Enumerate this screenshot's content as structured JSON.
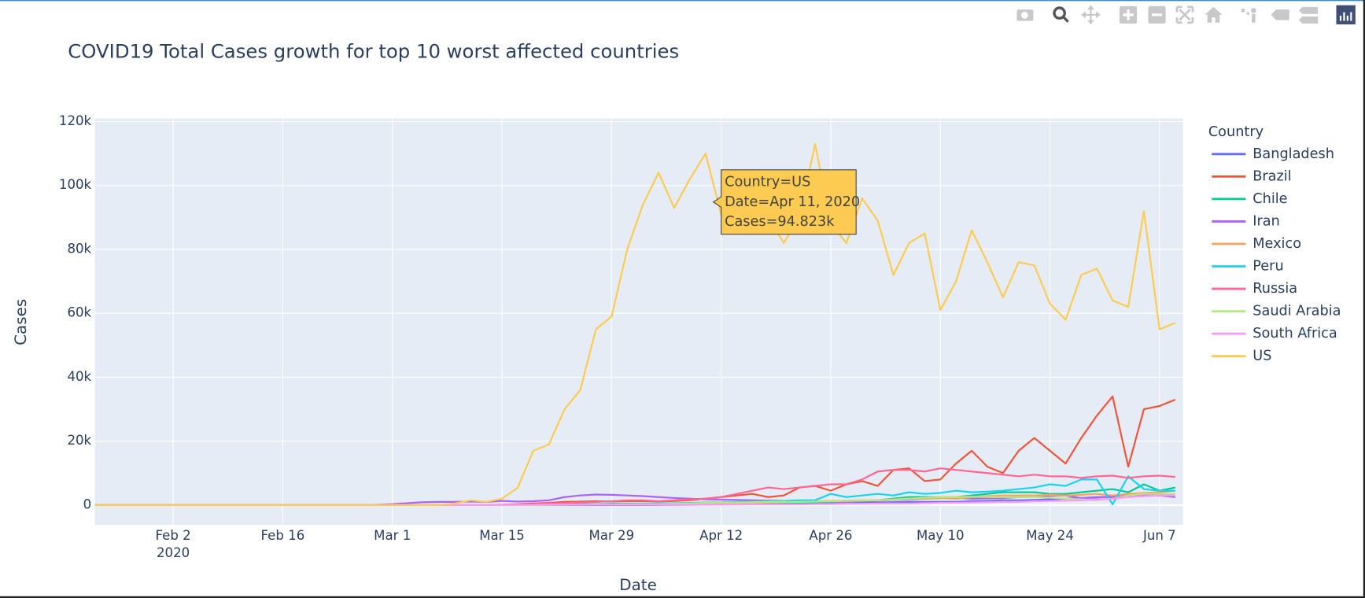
{
  "chart_data": {
    "type": "line",
    "title": "COVID19 Total Cases growth for top 10 worst affected countries",
    "x_label": "Date",
    "y_label": "Cases",
    "legend_title": "Country",
    "legend_position": "right",
    "grid": true,
    "x": [
      "2020-01-23",
      "2020-01-25",
      "2020-01-27",
      "2020-01-29",
      "2020-01-31",
      "2020-02-02",
      "2020-02-04",
      "2020-02-06",
      "2020-02-08",
      "2020-02-10",
      "2020-02-12",
      "2020-02-14",
      "2020-02-16",
      "2020-02-18",
      "2020-02-20",
      "2020-02-22",
      "2020-02-24",
      "2020-02-26",
      "2020-02-28",
      "2020-03-01",
      "2020-03-03",
      "2020-03-05",
      "2020-03-07",
      "2020-03-09",
      "2020-03-11",
      "2020-03-13",
      "2020-03-15",
      "2020-03-17",
      "2020-03-19",
      "2020-03-21",
      "2020-03-23",
      "2020-03-25",
      "2020-03-27",
      "2020-03-29",
      "2020-03-31",
      "2020-04-02",
      "2020-04-04",
      "2020-04-06",
      "2020-04-08",
      "2020-04-10",
      "2020-04-12",
      "2020-04-14",
      "2020-04-16",
      "2020-04-18",
      "2020-04-20",
      "2020-04-22",
      "2020-04-24",
      "2020-04-26",
      "2020-04-28",
      "2020-04-30",
      "2020-05-02",
      "2020-05-04",
      "2020-05-06",
      "2020-05-08",
      "2020-05-10",
      "2020-05-12",
      "2020-05-14",
      "2020-05-16",
      "2020-05-18",
      "2020-05-20",
      "2020-05-22",
      "2020-05-24",
      "2020-05-26",
      "2020-05-28",
      "2020-05-30",
      "2020-06-01",
      "2020-06-03",
      "2020-06-05",
      "2020-06-07",
      "2020-06-09"
    ],
    "xlim": [
      "2020-01-23",
      "2020-06-10"
    ],
    "xticks": [
      {
        "value": "2020-02-02",
        "label": "Feb 2"
      },
      {
        "value": "2020-02-16",
        "label": "Feb 16"
      },
      {
        "value": "2020-03-01",
        "label": "Mar 1"
      },
      {
        "value": "2020-03-15",
        "label": "Mar 15"
      },
      {
        "value": "2020-03-29",
        "label": "Mar 29"
      },
      {
        "value": "2020-04-12",
        "label": "Apr 12"
      },
      {
        "value": "2020-04-26",
        "label": "Apr 26"
      },
      {
        "value": "2020-05-10",
        "label": "May 10"
      },
      {
        "value": "2020-05-24",
        "label": "May 24"
      },
      {
        "value": "2020-06-07",
        "label": "Jun 7"
      }
    ],
    "x_year_label": {
      "value": "2020-02-02",
      "label": "2020"
    },
    "ylim": [
      -6200,
      121000
    ],
    "yticks": [
      0,
      {
        "value": 20000,
        "label": "20k"
      },
      {
        "value": 40000,
        "label": "40k"
      },
      {
        "value": 60000,
        "label": "60k"
      },
      {
        "value": 80000,
        "label": "80k"
      },
      {
        "value": 100000,
        "label": "100k"
      },
      {
        "value": 120000,
        "label": "120k"
      }
    ],
    "series": [
      {
        "name": "Bangladesh",
        "color": "#636efa",
        "values": [
          0,
          0,
          0,
          0,
          0,
          0,
          0,
          0,
          0,
          0,
          0,
          0,
          0,
          0,
          0,
          0,
          0,
          0,
          0,
          0,
          0,
          0,
          0,
          0,
          0,
          0,
          0,
          0,
          0,
          0,
          0,
          0,
          0,
          0,
          0,
          10,
          20,
          50,
          100,
          150,
          200,
          300,
          300,
          400,
          400,
          500,
          500,
          600,
          700,
          800,
          800,
          900,
          1000,
          1000,
          1000,
          1000,
          1200,
          1300,
          1500,
          1500,
          1600,
          1800,
          2000,
          2200,
          2500,
          2500,
          2600,
          2800,
          3000,
          3000
        ]
      },
      {
        "name": "Brazil",
        "color": "#EF553B",
        "values": [
          0,
          0,
          0,
          0,
          0,
          0,
          0,
          0,
          0,
          0,
          0,
          0,
          0,
          0,
          0,
          0,
          0,
          0,
          0,
          0,
          0,
          0,
          0,
          0,
          0,
          0,
          100,
          300,
          500,
          700,
          1000,
          1100,
          1200,
          1100,
          1200,
          1200,
          1100,
          1300,
          1500,
          2000,
          2500,
          3000,
          3500,
          2500,
          3000,
          5500,
          6000,
          4500,
          6500,
          7500,
          6000,
          11000,
          11500,
          7500,
          8000,
          13000,
          17000,
          12000,
          10000,
          17000,
          21000,
          17000,
          13000,
          21000,
          28000,
          34000,
          12000,
          30000,
          31000,
          33000
        ]
      },
      {
        "name": "Chile",
        "color": "#00cc96",
        "values": [
          0,
          0,
          0,
          0,
          0,
          0,
          0,
          0,
          0,
          0,
          0,
          0,
          0,
          0,
          0,
          0,
          0,
          0,
          0,
          0,
          0,
          0,
          0,
          0,
          0,
          0,
          0,
          0,
          50,
          100,
          200,
          300,
          300,
          400,
          400,
          400,
          400,
          500,
          500,
          500,
          500,
          500,
          500,
          500,
          500,
          500,
          600,
          800,
          1000,
          1200,
          1500,
          2000,
          2500,
          2500,
          2500,
          2500,
          3000,
          3500,
          4000,
          4000,
          4000,
          3500,
          3500,
          4000,
          4500,
          5000,
          4000,
          6500,
          4500,
          5500
        ]
      },
      {
        "name": "Iran",
        "color": "#ab63fa",
        "values": [
          0,
          0,
          0,
          0,
          0,
          0,
          0,
          0,
          0,
          0,
          0,
          0,
          0,
          0,
          0,
          0,
          0,
          0,
          100,
          300,
          600,
          900,
          1000,
          1000,
          1100,
          1000,
          1300,
          1100,
          1200,
          1500,
          2500,
          3000,
          3300,
          3200,
          3000,
          2800,
          2500,
          2200,
          2000,
          1800,
          1700,
          1600,
          1500,
          1400,
          1300,
          1200,
          1100,
          1000,
          1000,
          1300,
          1400,
          1600,
          1800,
          2000,
          2200,
          2300,
          2000,
          2100,
          2200,
          2500,
          2700,
          2900,
          3000,
          2200,
          2300,
          2800,
          3000,
          3200,
          3000,
          2500
        ]
      },
      {
        "name": "Mexico",
        "color": "#FFA15A",
        "values": [
          0,
          0,
          0,
          0,
          0,
          0,
          0,
          0,
          0,
          0,
          0,
          0,
          0,
          0,
          0,
          0,
          0,
          0,
          0,
          0,
          0,
          0,
          0,
          0,
          0,
          0,
          0,
          0,
          0,
          50,
          100,
          100,
          150,
          200,
          300,
          300,
          400,
          400,
          500,
          500,
          500,
          600,
          700,
          800,
          900,
          1000,
          1200,
          1300,
          1400,
          1500,
          1500,
          1800,
          2000,
          2000,
          2200,
          2000,
          2500,
          2800,
          3000,
          3000,
          3000,
          3200,
          3000,
          3200,
          3500,
          3000,
          3500,
          3800,
          4000,
          4500
        ]
      },
      {
        "name": "Peru",
        "color": "#19d3f3",
        "values": [
          0,
          0,
          0,
          0,
          0,
          0,
          0,
          0,
          0,
          0,
          0,
          0,
          0,
          0,
          0,
          0,
          0,
          0,
          0,
          0,
          0,
          0,
          0,
          0,
          0,
          0,
          0,
          0,
          50,
          100,
          100,
          200,
          200,
          300,
          300,
          400,
          500,
          600,
          700,
          800,
          900,
          1000,
          1100,
          1200,
          1300,
          1500,
          1500,
          3500,
          2500,
          3000,
          3500,
          3000,
          4000,
          3500,
          3800,
          4500,
          4000,
          4200,
          4500,
          5000,
          5500,
          6500,
          6000,
          8000,
          8000,
          200,
          9000,
          5000,
          4500,
          4500
        ]
      },
      {
        "name": "Russia",
        "color": "#FF6692",
        "values": [
          0,
          0,
          0,
          0,
          0,
          0,
          0,
          0,
          0,
          0,
          0,
          0,
          0,
          0,
          0,
          0,
          0,
          0,
          0,
          0,
          0,
          0,
          0,
          0,
          0,
          0,
          100,
          200,
          300,
          500,
          600,
          800,
          1000,
          1200,
          1500,
          1500,
          1200,
          1500,
          1800,
          2000,
          2500,
          3500,
          4500,
          5500,
          5000,
          5500,
          6000,
          6500,
          6500,
          8000,
          10500,
          11000,
          11000,
          10500,
          11500,
          11000,
          10500,
          10000,
          9500,
          9000,
          9500,
          9000,
          9000,
          8500,
          9000,
          9200,
          8500,
          9000,
          9200,
          8800
        ]
      },
      {
        "name": "Saudi Arabia",
        "color": "#B6E880",
        "values": [
          0,
          0,
          0,
          0,
          0,
          0,
          0,
          0,
          0,
          0,
          0,
          0,
          0,
          0,
          0,
          0,
          0,
          0,
          0,
          0,
          0,
          0,
          0,
          0,
          0,
          0,
          0,
          0,
          0,
          50,
          100,
          100,
          150,
          200,
          200,
          250,
          300,
          400,
          500,
          700,
          800,
          800,
          900,
          1000,
          1000,
          1000,
          1100,
          1200,
          1300,
          1400,
          1500,
          1700,
          2000,
          2300,
          2500,
          2500,
          2600,
          2500,
          2500,
          2500,
          2500,
          2300,
          2000,
          1800,
          1500,
          2000,
          3000,
          3500,
          3500,
          3500
        ]
      },
      {
        "name": "South Africa",
        "color": "#FF97FF",
        "values": [
          0,
          0,
          0,
          0,
          0,
          0,
          0,
          0,
          0,
          0,
          0,
          0,
          0,
          0,
          0,
          0,
          0,
          0,
          0,
          0,
          0,
          0,
          0,
          0,
          0,
          0,
          20,
          50,
          100,
          150,
          200,
          100,
          100,
          100,
          100,
          100,
          100,
          100,
          100,
          150,
          150,
          150,
          200,
          200,
          200,
          200,
          300,
          300,
          400,
          400,
          500,
          500,
          500,
          600,
          700,
          700,
          800,
          900,
          1000,
          1000,
          1200,
          1300,
          1400,
          1500,
          1700,
          2000,
          2500,
          2800,
          3000,
          3000
        ]
      },
      {
        "name": "US",
        "color": "#FECB52",
        "values": [
          0,
          0,
          0,
          0,
          0,
          0,
          0,
          0,
          0,
          0,
          0,
          0,
          0,
          0,
          0,
          0,
          0,
          0,
          0,
          0,
          0,
          0,
          0,
          500,
          1500,
          1000,
          2000,
          5400,
          17000,
          19000,
          30000,
          36000,
          55000,
          59000,
          80000,
          94000,
          104000,
          93000,
          102000,
          110000,
          91000,
          95000,
          105000,
          90000,
          82000,
          90000,
          113000,
          88000,
          82000,
          96000,
          89000,
          72000,
          82000,
          85000,
          61000,
          70000,
          86000,
          76000,
          65000,
          76000,
          75000,
          63000,
          58000,
          72000,
          74000,
          64000,
          62000,
          92000,
          55000,
          57000
        ]
      }
    ],
    "hover_label": {
      "x": "2020-04-11",
      "y": 94823,
      "color": "#FECB52",
      "lines": [
        "Country=US",
        "Date=Apr 11, 2020",
        "Cases=94.823k"
      ]
    }
  }
}
